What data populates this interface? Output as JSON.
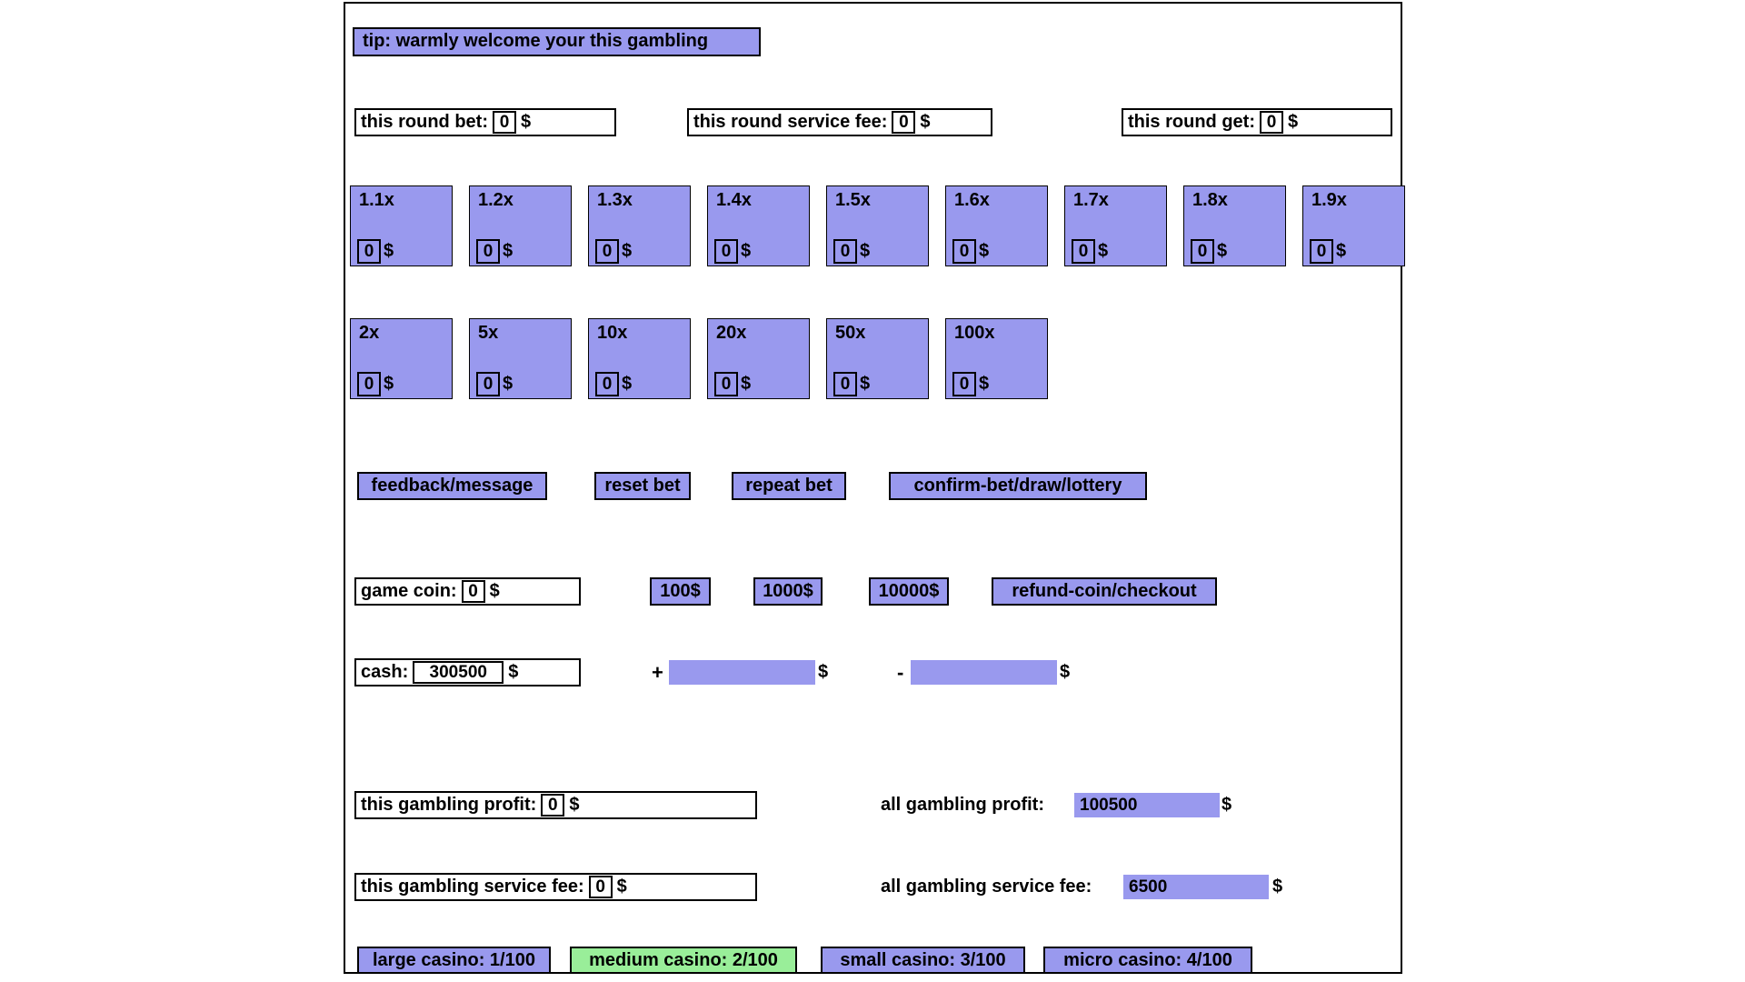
{
  "currency": "$",
  "tip": {
    "label": "tip: warmly welcome your this gambling"
  },
  "round": {
    "bet_label": "this round bet:",
    "bet_value": "0",
    "fee_label": "this round service fee:",
    "fee_value": "0",
    "get_label": "this round get:",
    "get_value": "0"
  },
  "multipliers": {
    "row1": [
      {
        "label": "1.1x",
        "value": "0"
      },
      {
        "label": "1.2x",
        "value": "0"
      },
      {
        "label": "1.3x",
        "value": "0"
      },
      {
        "label": "1.4x",
        "value": "0"
      },
      {
        "label": "1.5x",
        "value": "0"
      },
      {
        "label": "1.6x",
        "value": "0"
      },
      {
        "label": "1.7x",
        "value": "0"
      },
      {
        "label": "1.8x",
        "value": "0"
      },
      {
        "label": "1.9x",
        "value": "0"
      }
    ],
    "row2": [
      {
        "label": "2x",
        "value": "0"
      },
      {
        "label": "5x",
        "value": "0"
      },
      {
        "label": "10x",
        "value": "0"
      },
      {
        "label": "20x",
        "value": "0"
      },
      {
        "label": "50x",
        "value": "0"
      },
      {
        "label": "100x",
        "value": "0"
      }
    ]
  },
  "actions": {
    "feedback": "feedback/message",
    "reset": "reset bet",
    "repeat": "repeat bet",
    "confirm": "confirm-bet/draw/lottery"
  },
  "coin": {
    "label": "game coin:",
    "value": "0",
    "add100": "100$",
    "add1000": "1000$",
    "add10000": "10000$",
    "refund": "refund-coin/checkout"
  },
  "cash": {
    "label": "cash:",
    "value": "300500",
    "plus_sign": "+",
    "minus_sign": "-",
    "plus_value": "",
    "minus_value": ""
  },
  "profit": {
    "this_label": "this gambling profit:",
    "this_value": "0",
    "all_label": "all gambling profit:",
    "all_value": "100500"
  },
  "service": {
    "this_label": "this gambling service fee:",
    "this_value": "0",
    "all_label": "all gambling service fee:",
    "all_value": "6500"
  },
  "casinos": [
    {
      "label": "large casino: 1/100"
    },
    {
      "label": "medium casino: 2/100"
    },
    {
      "label": "small casino: 3/100"
    },
    {
      "label": "micro casino: 4/100"
    }
  ],
  "colors": {
    "purple": "#9999ee",
    "green": "#99ee99"
  }
}
